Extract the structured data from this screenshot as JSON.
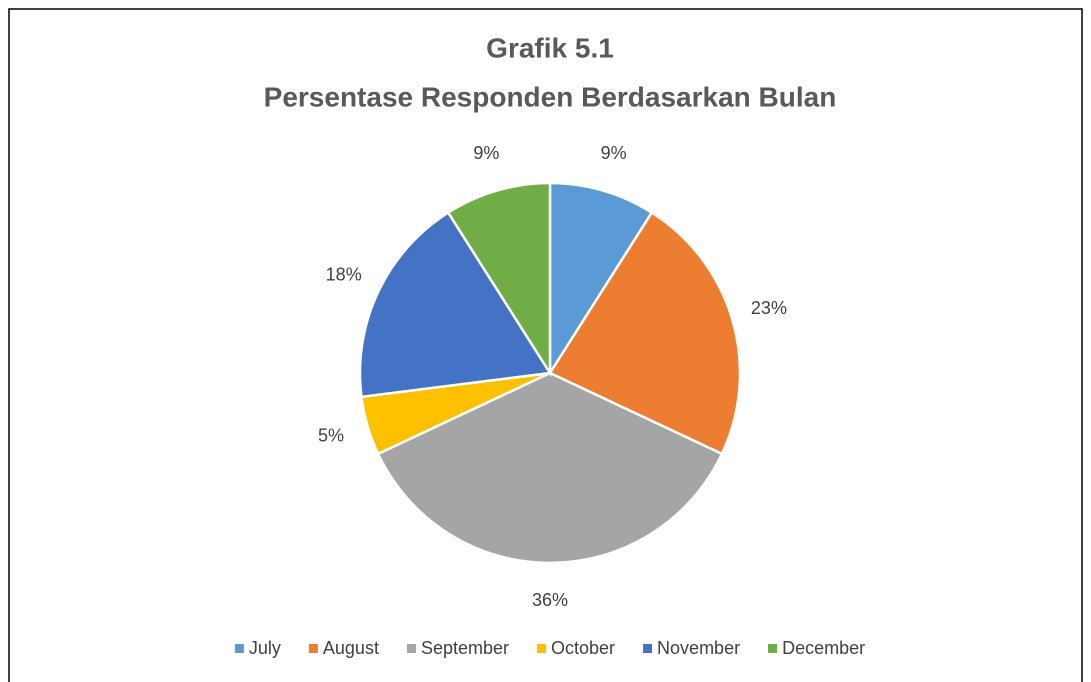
{
  "chart_data": {
    "type": "pie",
    "title": "Grafik 5.1",
    "subtitle": "Persentase Responden Berdasarkan Bulan",
    "categories": [
      "July",
      "August",
      "September",
      "October",
      "November",
      "December"
    ],
    "values": [
      9,
      23,
      36,
      5,
      18,
      9
    ],
    "value_labels": [
      "9%",
      "23%",
      "36%",
      "5%",
      "18%",
      "9%"
    ],
    "colors": [
      "#5b9bd5",
      "#ed7d31",
      "#a5a5a5",
      "#ffc000",
      "#4472c4",
      "#70ad47"
    ],
    "legend": "bottom"
  }
}
